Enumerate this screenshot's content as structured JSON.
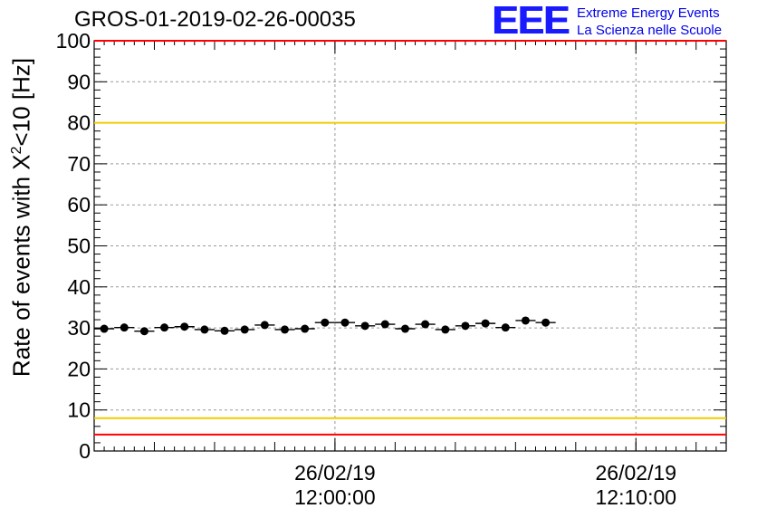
{
  "title": "GROS-01-2019-02-26-00035",
  "logo": {
    "mark": "EEE",
    "line1": "Extreme Energy Events",
    "line2": "La Scienza nelle Scuole"
  },
  "colors": {
    "data": "#000000",
    "limit_outer": "#ff0000",
    "limit_inner": "#f0cc00",
    "grid": "#999999",
    "logo": "#1a1aff"
  },
  "chart_data": {
    "type": "scatter",
    "title": "GROS-01-2019-02-26-00035",
    "ylabel_prefix": "Rate of events with X",
    "ylabel_sup": "2",
    "ylabel_suffix": "<10 [Hz]",
    "ylim": [
      0,
      100
    ],
    "yticks": [
      0,
      10,
      20,
      30,
      40,
      50,
      60,
      70,
      80,
      90,
      100
    ],
    "xlim": [
      "11:52:00",
      "12:13:00"
    ],
    "xticks": [
      {
        "t": "12:00:00",
        "date": "26/02/19",
        "time": "12:00:00"
      },
      {
        "t": "12:10:00",
        "date": "26/02/19",
        "time": "12:10:00"
      }
    ],
    "grid": true,
    "reference_lines": [
      {
        "y": 100,
        "color": "#ff0000"
      },
      {
        "y": 80,
        "color": "#f0cc00"
      },
      {
        "y": 8,
        "color": "#f0cc00"
      },
      {
        "y": 4,
        "color": "#ff0000"
      }
    ],
    "points": [
      {
        "x": "11:52:20",
        "y": 29.8
      },
      {
        "x": "11:53:00",
        "y": 30.1
      },
      {
        "x": "11:53:40",
        "y": 29.2
      },
      {
        "x": "11:54:20",
        "y": 30.1
      },
      {
        "x": "11:55:00",
        "y": 30.3
      },
      {
        "x": "11:55:40",
        "y": 29.6
      },
      {
        "x": "11:56:20",
        "y": 29.3
      },
      {
        "x": "11:57:00",
        "y": 29.6
      },
      {
        "x": "11:57:40",
        "y": 30.7
      },
      {
        "x": "11:58:20",
        "y": 29.6
      },
      {
        "x": "11:59:00",
        "y": 29.8
      },
      {
        "x": "11:59:40",
        "y": 31.3
      },
      {
        "x": "12:00:20",
        "y": 31.3
      },
      {
        "x": "12:01:00",
        "y": 30.5
      },
      {
        "x": "12:01:40",
        "y": 30.9
      },
      {
        "x": "12:02:20",
        "y": 29.8
      },
      {
        "x": "12:03:00",
        "y": 30.9
      },
      {
        "x": "12:03:40",
        "y": 29.6
      },
      {
        "x": "12:04:20",
        "y": 30.5
      },
      {
        "x": "12:05:00",
        "y": 31.1
      },
      {
        "x": "12:05:40",
        "y": 30.1
      },
      {
        "x": "12:06:20",
        "y": 31.8
      },
      {
        "x": "12:07:00",
        "y": 31.3
      }
    ]
  }
}
